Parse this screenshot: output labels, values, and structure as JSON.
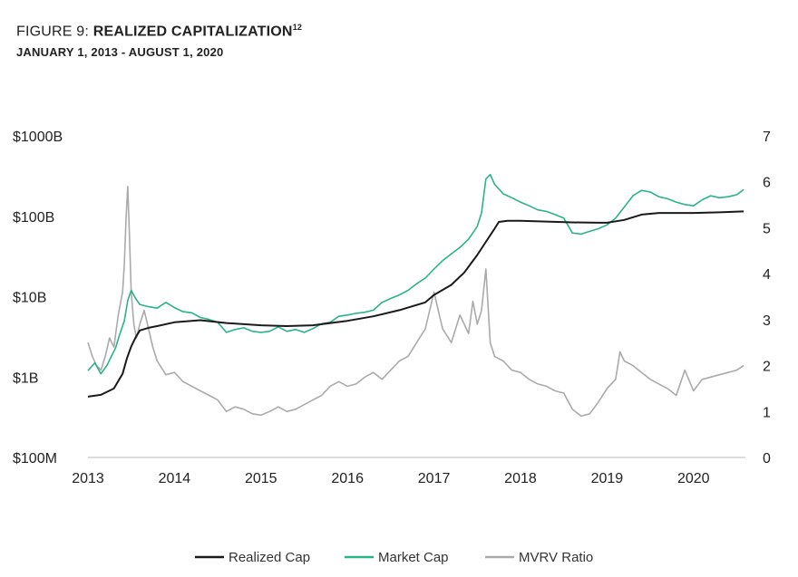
{
  "header": {
    "title_prefix": "FIGURE 9: ",
    "title_main": "REALIZED CAPITALIZATION",
    "title_sup": "12",
    "subtitle": "JANUARY 1, 2013 - AUGUST 1, 2020"
  },
  "chart_data": {
    "type": "line",
    "x_ticks": [
      "2013",
      "2014",
      "2015",
      "2016",
      "2017",
      "2018",
      "2019",
      "2020"
    ],
    "x_range": [
      2013.0,
      2020.6
    ],
    "y_left": {
      "scale": "log",
      "range_billions": [
        0.1,
        1000
      ],
      "ticks": [
        "$1000B",
        "$100B",
        "$10B",
        "$1B",
        "$100M"
      ],
      "tick_values_billions": [
        1000,
        100,
        10,
        1,
        0.1
      ]
    },
    "y_right": {
      "scale": "linear",
      "range": [
        0,
        7
      ],
      "ticks": [
        "7",
        "6",
        "5",
        "4",
        "3",
        "2",
        "1",
        "0"
      ],
      "tick_values": [
        7,
        6,
        5,
        4,
        3,
        2,
        1,
        0
      ]
    },
    "grid": false,
    "legend_position": "bottom-center",
    "series": [
      {
        "name": "Realized Cap",
        "axis": "left",
        "unit": "billions USD",
        "color": "#1a1a1a",
        "x": [
          2013.0,
          2013.15,
          2013.3,
          2013.4,
          2013.45,
          2013.5,
          2013.55,
          2013.6,
          2013.7,
          2013.8,
          2014.0,
          2014.3,
          2014.6,
          2015.0,
          2015.3,
          2015.6,
          2016.0,
          2016.3,
          2016.6,
          2016.9,
          2017.0,
          2017.2,
          2017.35,
          2017.5,
          2017.6,
          2017.7,
          2017.75,
          2017.85,
          2018.0,
          2018.3,
          2018.6,
          2018.9,
          2019.0,
          2019.2,
          2019.4,
          2019.6,
          2020.0,
          2020.3,
          2020.58
        ],
        "y": [
          0.57,
          0.6,
          0.72,
          1.1,
          1.7,
          2.4,
          3.1,
          3.8,
          4.1,
          4.3,
          4.8,
          5.1,
          4.7,
          4.4,
          4.3,
          4.4,
          5.0,
          5.7,
          6.8,
          8.5,
          10.5,
          14,
          20,
          33,
          48,
          70,
          85,
          88,
          88,
          86,
          84,
          83,
          83,
          90,
          105,
          110,
          110,
          112,
          115
        ]
      },
      {
        "name": "Market Cap",
        "axis": "left",
        "unit": "billions USD",
        "color": "#2ab38a",
        "x": [
          2013.0,
          2013.08,
          2013.15,
          2013.22,
          2013.28,
          2013.32,
          2013.36,
          2013.42,
          2013.46,
          2013.5,
          2013.55,
          2013.6,
          2013.7,
          2013.8,
          2013.9,
          2014.0,
          2014.1,
          2014.2,
          2014.3,
          2014.4,
          2014.5,
          2014.6,
          2014.7,
          2014.8,
          2014.9,
          2015.0,
          2015.1,
          2015.2,
          2015.3,
          2015.4,
          2015.5,
          2015.6,
          2015.7,
          2015.8,
          2015.9,
          2016.0,
          2016.1,
          2016.2,
          2016.3,
          2016.4,
          2016.5,
          2016.6,
          2016.7,
          2016.8,
          2016.9,
          2017.0,
          2017.1,
          2017.2,
          2017.3,
          2017.4,
          2017.45,
          2017.5,
          2017.55,
          2017.6,
          2017.65,
          2017.7,
          2017.8,
          2017.9,
          2018.0,
          2018.1,
          2018.2,
          2018.3,
          2018.4,
          2018.5,
          2018.6,
          2018.7,
          2018.8,
          2018.9,
          2019.0,
          2019.1,
          2019.2,
          2019.3,
          2019.4,
          2019.5,
          2019.6,
          2019.7,
          2019.8,
          2019.9,
          2020.0,
          2020.1,
          2020.2,
          2020.3,
          2020.4,
          2020.5,
          2020.58
        ],
        "y": [
          1.2,
          1.5,
          1.1,
          1.4,
          1.9,
          2.3,
          3.2,
          5.0,
          9.0,
          12.0,
          9.5,
          8.0,
          7.5,
          7.2,
          8.5,
          7.3,
          6.5,
          6.3,
          5.5,
          5.2,
          4.8,
          3.6,
          3.9,
          4.1,
          3.7,
          3.6,
          3.7,
          4.2,
          3.7,
          3.9,
          3.6,
          4.0,
          4.6,
          4.8,
          5.7,
          5.9,
          6.2,
          6.4,
          6.8,
          8.5,
          9.5,
          10.5,
          12.0,
          14.5,
          17.0,
          22.0,
          28.0,
          34.0,
          41.0,
          52.0,
          62.0,
          75.0,
          110.0,
          290.0,
          330.0,
          250.0,
          190.0,
          170.0,
          150.0,
          135.0,
          120.0,
          115.0,
          105.0,
          95.0,
          62.0,
          60.0,
          65.0,
          70.0,
          78.0,
          95.0,
          130.0,
          180.0,
          210.0,
          200.0,
          175.0,
          165.0,
          150.0,
          140.0,
          135.0,
          160.0,
          180.0,
          170.0,
          175.0,
          185.0,
          215.0
        ]
      },
      {
        "name": "MVRV Ratio",
        "axis": "right",
        "unit": "ratio",
        "color": "#aaaaaa",
        "x": [
          2013.0,
          2013.05,
          2013.1,
          2013.15,
          2013.2,
          2013.25,
          2013.3,
          2013.35,
          2013.4,
          2013.42,
          2013.44,
          2013.46,
          2013.48,
          2013.5,
          2013.53,
          2013.56,
          2013.6,
          2013.65,
          2013.7,
          2013.75,
          2013.8,
          2013.9,
          2014.0,
          2014.1,
          2014.2,
          2014.3,
          2014.4,
          2014.5,
          2014.6,
          2014.7,
          2014.8,
          2014.9,
          2015.0,
          2015.1,
          2015.2,
          2015.3,
          2015.4,
          2015.5,
          2015.6,
          2015.7,
          2015.8,
          2015.9,
          2016.0,
          2016.1,
          2016.2,
          2016.3,
          2016.4,
          2016.5,
          2016.6,
          2016.7,
          2016.8,
          2016.9,
          2017.0,
          2017.05,
          2017.1,
          2017.2,
          2017.3,
          2017.4,
          2017.45,
          2017.5,
          2017.55,
          2017.6,
          2017.65,
          2017.7,
          2017.8,
          2017.9,
          2018.0,
          2018.1,
          2018.2,
          2018.3,
          2018.4,
          2018.5,
          2018.6,
          2018.7,
          2018.8,
          2018.9,
          2019.0,
          2019.1,
          2019.15,
          2019.2,
          2019.3,
          2019.4,
          2019.5,
          2019.6,
          2019.7,
          2019.8,
          2019.9,
          2020.0,
          2020.1,
          2020.2,
          2020.3,
          2020.4,
          2020.5,
          2020.58
        ],
        "y": [
          2.5,
          2.2,
          2.0,
          1.9,
          2.2,
          2.6,
          2.4,
          3.1,
          3.6,
          4.2,
          5.2,
          5.9,
          4.8,
          3.6,
          2.9,
          2.6,
          2.9,
          3.2,
          2.8,
          2.4,
          2.1,
          1.8,
          1.85,
          1.65,
          1.55,
          1.45,
          1.35,
          1.25,
          1.0,
          1.1,
          1.05,
          0.95,
          0.92,
          1.0,
          1.1,
          1.0,
          1.05,
          1.15,
          1.25,
          1.35,
          1.55,
          1.65,
          1.55,
          1.6,
          1.75,
          1.85,
          1.7,
          1.9,
          2.1,
          2.2,
          2.5,
          2.8,
          3.6,
          3.2,
          2.8,
          2.5,
          3.1,
          2.7,
          3.4,
          2.9,
          3.2,
          4.1,
          2.5,
          2.2,
          2.1,
          1.9,
          1.85,
          1.7,
          1.6,
          1.55,
          1.45,
          1.4,
          1.05,
          0.9,
          0.95,
          1.2,
          1.5,
          1.7,
          2.3,
          2.1,
          2.0,
          1.85,
          1.7,
          1.6,
          1.5,
          1.35,
          1.9,
          1.45,
          1.7,
          1.75,
          1.8,
          1.85,
          1.9,
          2.0
        ]
      }
    ]
  }
}
